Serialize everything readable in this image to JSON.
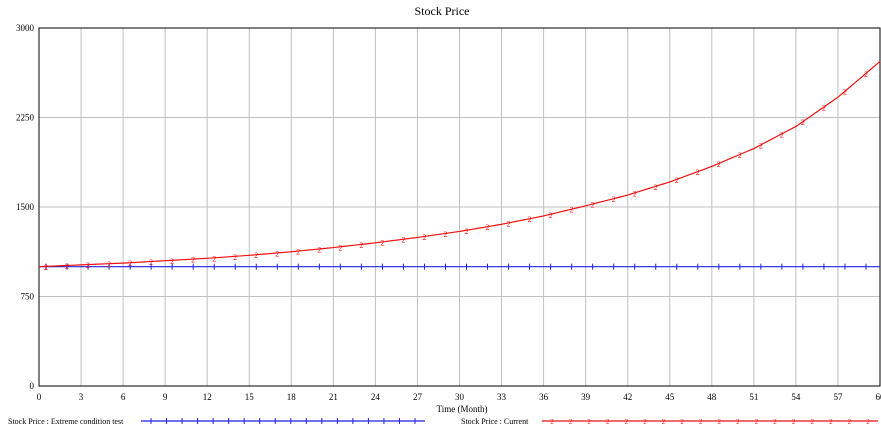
{
  "chart_data": {
    "type": "line",
    "title": "Stock Price",
    "xlabel": "Time (Month)",
    "ylabel": "",
    "xlim": [
      0,
      60
    ],
    "ylim": [
      0,
      3000
    ],
    "x_ticks": [
      "0",
      "3",
      "6",
      "9",
      "12",
      "15",
      "18",
      "21",
      "24",
      "27",
      "30",
      "33",
      "36",
      "39",
      "42",
      "45",
      "48",
      "51",
      "54",
      "57",
      "60"
    ],
    "y_ticks": [
      "0",
      "750",
      "1500",
      "2250",
      "3000"
    ],
    "grid": true,
    "legend_position": "bottom",
    "series": [
      {
        "name": "Stock Price : Extreme condition test",
        "color": "#2222dd",
        "marker": "1",
        "x": [
          0,
          60
        ],
        "values": [
          1000,
          1000
        ]
      },
      {
        "name": "Stock Price : Current",
        "color": "#ee1111",
        "marker": "2",
        "x": [
          0,
          3,
          6,
          9,
          12,
          15,
          18,
          21,
          24,
          27,
          30,
          33,
          36,
          39,
          42,
          45,
          48,
          51,
          54,
          57,
          60
        ],
        "values": [
          1000,
          1015,
          1030,
          1050,
          1070,
          1095,
          1125,
          1160,
          1200,
          1245,
          1295,
          1355,
          1425,
          1510,
          1600,
          1710,
          1840,
          1990,
          2175,
          2420,
          2720
        ]
      }
    ]
  }
}
